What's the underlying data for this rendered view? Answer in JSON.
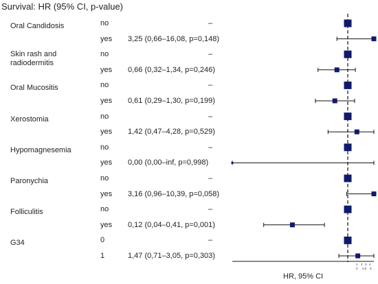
{
  "title": "Survival: HR (95% CI, p-value)",
  "chart_data": {
    "type": "forest",
    "title": "Survival: HR (95% CI, p-value)",
    "xlabel": "HR, 95% CI",
    "reference_line": 1,
    "tick_labels": [
      "1",
      "2",
      "3",
      "4",
      "0",
      "0.0",
      "0"
    ],
    "rows": [
      {
        "variable": "Oral Candidosis",
        "variable_lines": [
          "Oral Candidosis"
        ],
        "level": "no",
        "estimate_text": "–",
        "hr": 1,
        "reference": true
      },
      {
        "variable": "Oral Candidosis",
        "level": "yes",
        "estimate_text": "3,25 (0,66–16,08, p=0,148)",
        "hr": 3.25,
        "lower": 0.66,
        "upper": 16.08,
        "p": 0.148
      },
      {
        "variable": "Skin rash and radiodermitis",
        "variable_lines": [
          "Skin rash and",
          "radiodermitis"
        ],
        "level": "no",
        "estimate_text": "–",
        "hr": 1,
        "reference": true
      },
      {
        "variable": "Skin rash and radiodermitis",
        "level": "yes",
        "estimate_text": "0,66 (0,32–1,34, p=0,246)",
        "hr": 0.66,
        "lower": 0.32,
        "upper": 1.34,
        "p": 0.246
      },
      {
        "variable": "Oral Mucositis",
        "variable_lines": [
          "Oral Mucositis"
        ],
        "level": "no",
        "estimate_text": "–",
        "hr": 1,
        "reference": true
      },
      {
        "variable": "Oral Mucositis",
        "level": "yes",
        "estimate_text": "0,61 (0,29–1,30, p=0,199)",
        "hr": 0.61,
        "lower": 0.29,
        "upper": 1.3,
        "p": 0.199
      },
      {
        "variable": "Xerostomia",
        "variable_lines": [
          "Xerostomia"
        ],
        "level": "no",
        "estimate_text": "–",
        "hr": 1,
        "reference": true
      },
      {
        "variable": "Xerostomia",
        "level": "yes",
        "estimate_text": "1,42 (0,47–4,28, p=0,529)",
        "hr": 1.42,
        "lower": 0.47,
        "upper": 4.28,
        "p": 0.529
      },
      {
        "variable": "Hypomagnesemia",
        "variable_lines": [
          "Hypomagnesemia"
        ],
        "level": "no",
        "estimate_text": "–",
        "hr": 1,
        "reference": true
      },
      {
        "variable": "Hypomagnesemia",
        "level": "yes",
        "estimate_text": "0,00 (0,00–inf, p=0,998)",
        "hr": 0.0,
        "lower": 0.0,
        "upper": null,
        "p": 0.998
      },
      {
        "variable": "Paronychia",
        "variable_lines": [
          "Paronychia"
        ],
        "level": "no",
        "estimate_text": "–",
        "hr": 1,
        "reference": true
      },
      {
        "variable": "Paronychia",
        "level": "yes",
        "estimate_text": "3,16 (0,96–10,39, p=0,058)",
        "hr": 3.16,
        "lower": 0.96,
        "upper": 10.39,
        "p": 0.058
      },
      {
        "variable": "Folliculitis",
        "variable_lines": [
          "Folliculitis"
        ],
        "level": "no",
        "estimate_text": "–",
        "hr": 1,
        "reference": true
      },
      {
        "variable": "Folliculitis",
        "level": "yes",
        "estimate_text": "0,12 (0,04–0,41, p=0,001)",
        "hr": 0.12,
        "lower": 0.04,
        "upper": 0.41,
        "p": 0.001
      },
      {
        "variable": "G34",
        "variable_lines": [
          "G34"
        ],
        "level": "0",
        "estimate_text": "–",
        "hr": 1,
        "reference": true
      },
      {
        "variable": "G34",
        "level": "1",
        "estimate_text": "1,47 (0,71–3,05, p=0,303)",
        "hr": 1.47,
        "lower": 0.71,
        "upper": 3.05,
        "p": 0.303
      }
    ],
    "marker_color": "#101a6b",
    "line_color": "#111111"
  }
}
